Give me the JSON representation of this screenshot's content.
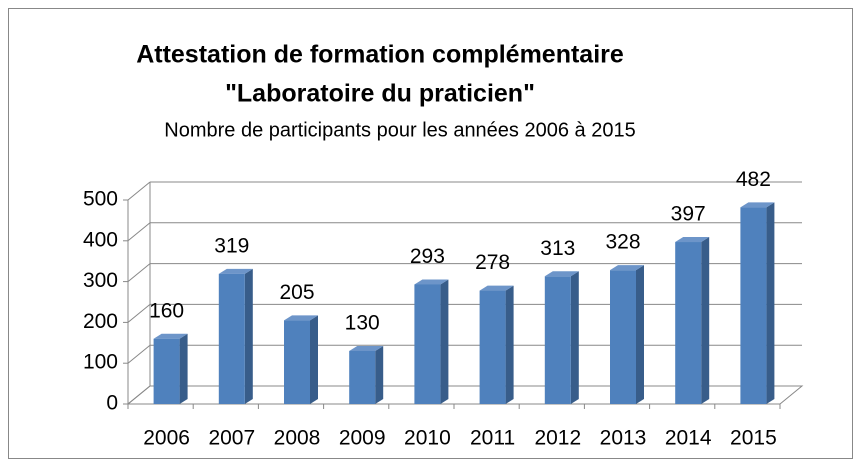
{
  "chart_data": {
    "type": "bar3d",
    "title": [
      "Attestation de formation complémentaire",
      "\"Laboratoire du praticien\""
    ],
    "subtitle": "Nombre de participants pour les années 2006 à 2015",
    "categories": [
      "2006",
      "2007",
      "2008",
      "2009",
      "2010",
      "2011",
      "2012",
      "2013",
      "2014",
      "2015"
    ],
    "values": [
      160,
      319,
      205,
      130,
      293,
      278,
      313,
      328,
      397,
      482
    ],
    "color": "#4f81bd",
    "ylim": [
      0,
      500
    ],
    "yticks": [
      0,
      100,
      200,
      300,
      400,
      500
    ],
    "grid": true
  }
}
